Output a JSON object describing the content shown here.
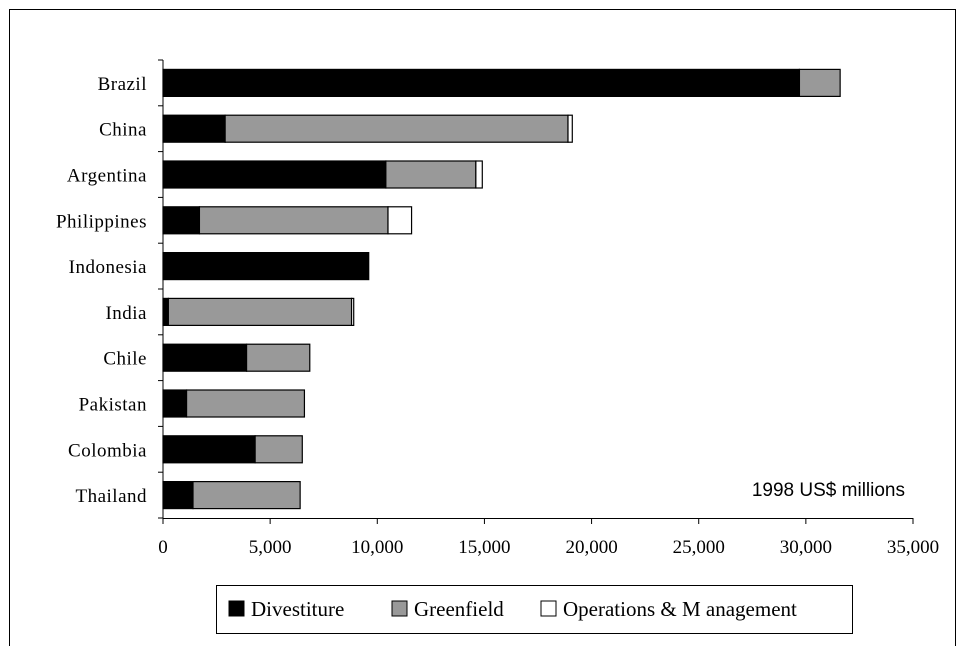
{
  "chart_data": {
    "type": "bar",
    "orientation": "horizontal",
    "stacked": true,
    "categories": [
      "Brazil",
      "China",
      "Argentina",
      "Philippines",
      "Indonesia",
      "India",
      "Chile",
      "Pakistan",
      "Colombia",
      "Thailand"
    ],
    "series": [
      {
        "name": "Divestiture",
        "color": "#000000",
        "values": [
          29700,
          2900,
          10400,
          1700,
          9600,
          250,
          3900,
          1100,
          4300,
          1400
        ]
      },
      {
        "name": "Greenfield",
        "color": "#999999",
        "values": [
          1900,
          16000,
          4200,
          8800,
          0,
          8550,
          2950,
          5500,
          2200,
          5000
        ]
      },
      {
        "name": "Operations & M anagement",
        "color": "#ffffff",
        "values": [
          0,
          200,
          300,
          1100,
          0,
          100,
          0,
          0,
          0,
          0
        ]
      }
    ],
    "xlim": [
      0,
      35000
    ],
    "xticks": [
      0,
      5000,
      10000,
      15000,
      20000,
      25000,
      30000,
      35000
    ],
    "xtick_labels": [
      "0",
      "5,000",
      "10,000",
      "15,000",
      "20,000",
      "25,000",
      "30,000",
      "35,000"
    ],
    "annotation": "1998 US$ millions",
    "legend_position": "bottom",
    "grid": false
  }
}
